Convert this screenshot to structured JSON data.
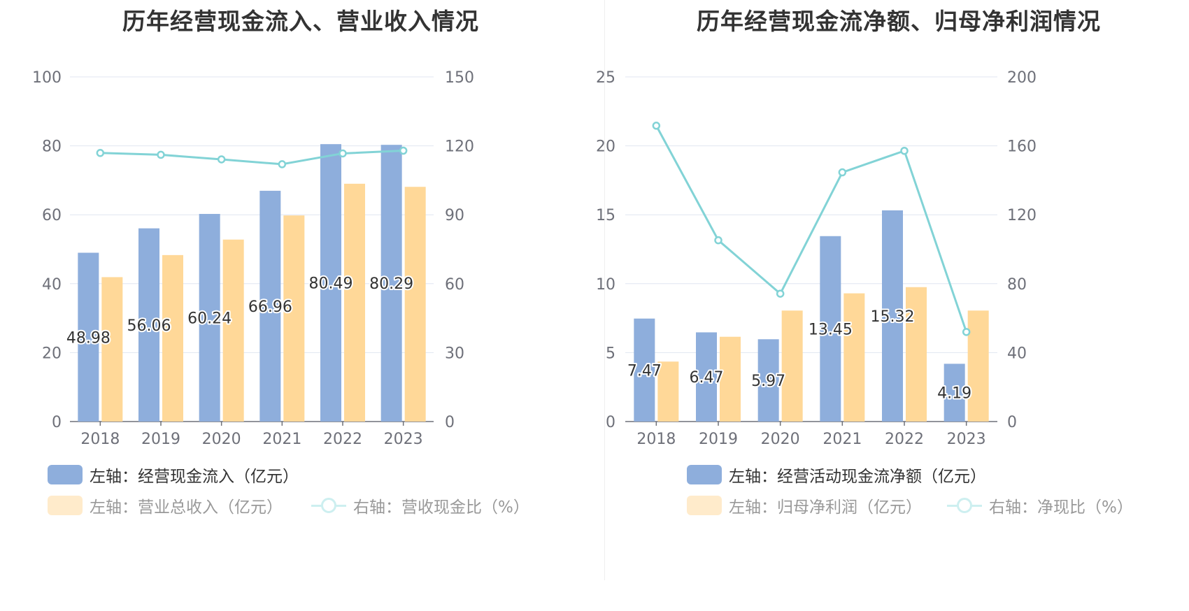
{
  "chart_data": [
    {
      "type": "bar",
      "title": "历年经营现金流入、营业收入情况",
      "categories": [
        "2018",
        "2019",
        "2020",
        "2021",
        "2022",
        "2023"
      ],
      "left_axis": {
        "ylim": [
          0,
          100
        ],
        "ticks": [
          "0",
          "20",
          "40",
          "60",
          "80",
          "100"
        ]
      },
      "right_axis": {
        "ylim": [
          0,
          150
        ],
        "ticks": [
          "0",
          "30",
          "60",
          "90",
          "120",
          "150"
        ]
      },
      "series": [
        {
          "name": "左轴：经营现金流入（亿元）",
          "type": "bar",
          "axis": "left",
          "color": "#8eaedc",
          "values": [
            48.98,
            56.06,
            60.24,
            66.96,
            80.49,
            80.29
          ],
          "labels": [
            "48.98",
            "56.06",
            "60.24",
            "66.96",
            "80.49",
            "80.29"
          ]
        },
        {
          "name": "左轴：营业总收入（亿元）",
          "type": "bar",
          "axis": "left",
          "color": "#ffd898",
          "values": [
            41.9,
            48.3,
            52.8,
            59.8,
            69.0,
            68.1
          ]
        },
        {
          "name": "右轴：营收现金比（%）",
          "type": "line",
          "axis": "right",
          "color": "#82d3d6",
          "values": [
            116.9,
            116.1,
            114.1,
            112.0,
            116.7,
            117.9
          ]
        }
      ]
    },
    {
      "type": "bar",
      "title": "历年经营现金流净额、归母净利润情况",
      "categories": [
        "2018",
        "2019",
        "2020",
        "2021",
        "2022",
        "2023"
      ],
      "left_axis": {
        "ylim": [
          0,
          25
        ],
        "ticks": [
          "0",
          "5",
          "10",
          "15",
          "20",
          "25"
        ]
      },
      "right_axis": {
        "ylim": [
          0,
          200
        ],
        "ticks": [
          "0",
          "40",
          "80",
          "120",
          "160",
          "200"
        ]
      },
      "series": [
        {
          "name": "左轴：经营活动现金流净额（亿元）",
          "type": "bar",
          "axis": "left",
          "color": "#8eaedc",
          "values": [
            7.47,
            6.47,
            5.97,
            13.45,
            15.32,
            4.19
          ],
          "labels": [
            "7.47",
            "6.47",
            "5.97",
            "13.45",
            "15.32",
            "4.19"
          ]
        },
        {
          "name": "左轴：归母净利润（亿元）",
          "type": "bar",
          "axis": "left",
          "color": "#ffd898",
          "values": [
            4.35,
            6.15,
            8.05,
            9.3,
            9.75,
            8.05
          ]
        },
        {
          "name": "右轴：净现比（%）",
          "type": "line",
          "axis": "right",
          "color": "#82d3d6",
          "values": [
            171.7,
            105.2,
            74.2,
            144.6,
            157.1,
            52.0
          ]
        }
      ]
    }
  ]
}
